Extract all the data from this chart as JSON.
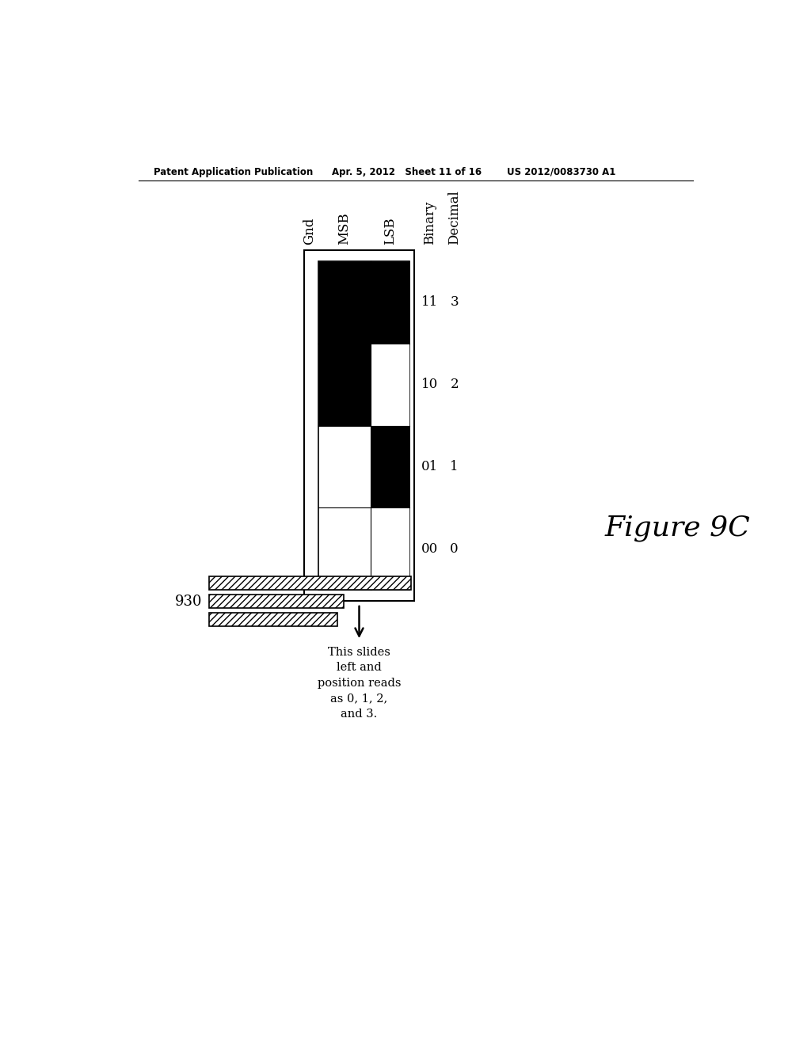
{
  "header_left": "Patent Application Publication",
  "header_mid": "Apr. 5, 2012   Sheet 11 of 16",
  "header_right": "US 2012/0083730 A1",
  "figure_label": "Figure 9C",
  "label_930": "930",
  "arrow_text": "This slides\nleft and\nposition reads\nas 0, 1, 2,\nand 3.",
  "col_labels": [
    "Gnd",
    "MSB",
    "LSB",
    "Binary",
    "Decimal"
  ],
  "row_labels_binary": [
    "11",
    "10",
    "01",
    "00"
  ],
  "row_labels_decimal": [
    "3",
    "2",
    "1",
    "0"
  ],
  "background_color": "#ffffff"
}
